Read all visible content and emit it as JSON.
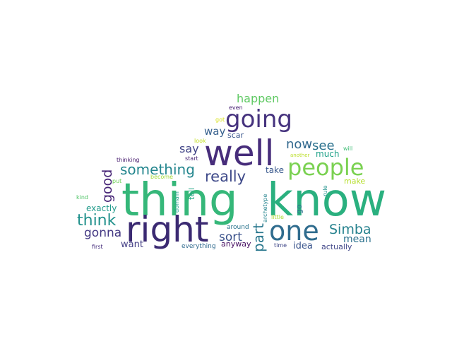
{
  "words": [
    {
      "text": "thing",
      "color": "#35b779"
    },
    {
      "text": "know",
      "color": "#2ab07f"
    },
    {
      "text": "well",
      "color": "#472d7b"
    },
    {
      "text": "right",
      "color": "#3b2a72"
    },
    {
      "text": "one",
      "color": "#2f6c8e"
    },
    {
      "text": "people",
      "color": "#7ad151"
    },
    {
      "text": "going",
      "color": "#46337e"
    },
    {
      "text": "something",
      "color": "#24868e"
    },
    {
      "text": "think",
      "color": "#21918c"
    },
    {
      "text": "Simba",
      "color": "#26828e"
    },
    {
      "text": "really",
      "color": "#3e4989"
    },
    {
      "text": "good",
      "color": "#482677"
    },
    {
      "text": "now",
      "color": "#31688e"
    },
    {
      "text": "see",
      "color": "#2c728e"
    },
    {
      "text": "part",
      "color": "#2a788e"
    },
    {
      "text": "happen",
      "color": "#5ec962"
    },
    {
      "text": "gonna",
      "color": "#443983"
    },
    {
      "text": "sort",
      "color": "#3b528b"
    },
    {
      "text": "say",
      "color": "#414487"
    },
    {
      "text": "way",
      "color": "#355f8d"
    },
    {
      "text": "mean",
      "color": "#2c728e"
    },
    {
      "text": "want",
      "color": "#433e85"
    },
    {
      "text": "exactly",
      "color": "#1f9a8a"
    },
    {
      "text": "idea",
      "color": "#3a548c"
    },
    {
      "text": "actually",
      "color": "#404688"
    },
    {
      "text": "anyway",
      "color": "#471063"
    },
    {
      "text": "much",
      "color": "#1fa188"
    },
    {
      "text": "take",
      "color": "#38588c"
    },
    {
      "text": "make",
      "color": "#b5de2b"
    },
    {
      "text": "scar",
      "color": "#39568c"
    },
    {
      "text": "tell",
      "color": "#22a785"
    },
    {
      "text": "go",
      "color": "#2d708e"
    },
    {
      "text": "around",
      "color": "#2b748e"
    },
    {
      "text": "everything",
      "color": "#306a8e"
    },
    {
      "text": "first",
      "color": "#472f7d"
    },
    {
      "text": "time",
      "color": "#3f4788"
    },
    {
      "text": "even",
      "color": "#482173"
    },
    {
      "text": "got",
      "color": "#d8e219"
    },
    {
      "text": "look",
      "color": "#c2df23"
    },
    {
      "text": "start",
      "color": "#482475"
    },
    {
      "text": "will",
      "color": "#3dbc74"
    },
    {
      "text": "another",
      "color": "#bade28"
    },
    {
      "text": "thinking",
      "color": "#481c6e"
    },
    {
      "text": "become",
      "color": "#a2da37"
    },
    {
      "text": "put",
      "color": "#6ece58"
    },
    {
      "text": "kind",
      "color": "#52c569"
    },
    {
      "text": "domain",
      "color": "#1f9e89"
    },
    {
      "text": "archetype",
      "color": "#25848e"
    },
    {
      "text": "rule",
      "color": "#20928c"
    },
    {
      "text": "little",
      "color": "#aadc32"
    }
  ]
}
